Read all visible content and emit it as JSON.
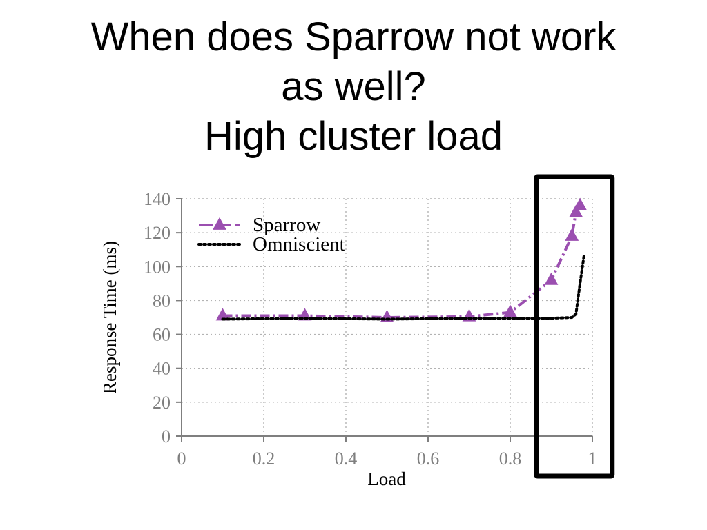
{
  "slide": {
    "title_line1": "When does Sparrow not work",
    "title_line2": "as well?",
    "title_line3": "High cluster load"
  },
  "chart_data": {
    "type": "line",
    "title": "",
    "xlabel": "Load",
    "ylabel": "Response Time (ms)",
    "xlim": [
      0,
      1
    ],
    "ylim": [
      0,
      140
    ],
    "xticks": [
      0,
      0.2,
      0.4,
      0.6,
      0.8,
      1
    ],
    "xtick_labels": [
      "0",
      "0.2",
      "0.4",
      "0.6",
      "0.8",
      "1"
    ],
    "yticks": [
      0,
      20,
      40,
      60,
      80,
      100,
      120,
      140
    ],
    "ytick_labels": [
      "0",
      "20",
      "40",
      "60",
      "80",
      "100",
      "120",
      "140"
    ],
    "grid": true,
    "legend_position": "top-left",
    "series": [
      {
        "name": "Sparrow",
        "color": "#9b4fb0",
        "style": "dash-dot",
        "marker": "triangle",
        "x": [
          0.1,
          0.3,
          0.5,
          0.7,
          0.8,
          0.9,
          0.95,
          0.96,
          0.97
        ],
        "y": [
          71,
          71,
          70,
          70.5,
          73,
          92,
          118,
          132,
          136
        ]
      },
      {
        "name": "Omniscient",
        "color": "#000000",
        "style": "dotted",
        "marker": "none",
        "x": [
          0.1,
          0.3,
          0.5,
          0.7,
          0.8,
          0.9,
          0.95,
          0.96,
          0.97,
          0.98
        ],
        "y": [
          69,
          69.5,
          69,
          69.5,
          69.5,
          69.5,
          70,
          72,
          90,
          107
        ]
      }
    ],
    "highlight_box": {
      "x_range": [
        0.86,
        1.05
      ],
      "color": "#000000"
    }
  }
}
